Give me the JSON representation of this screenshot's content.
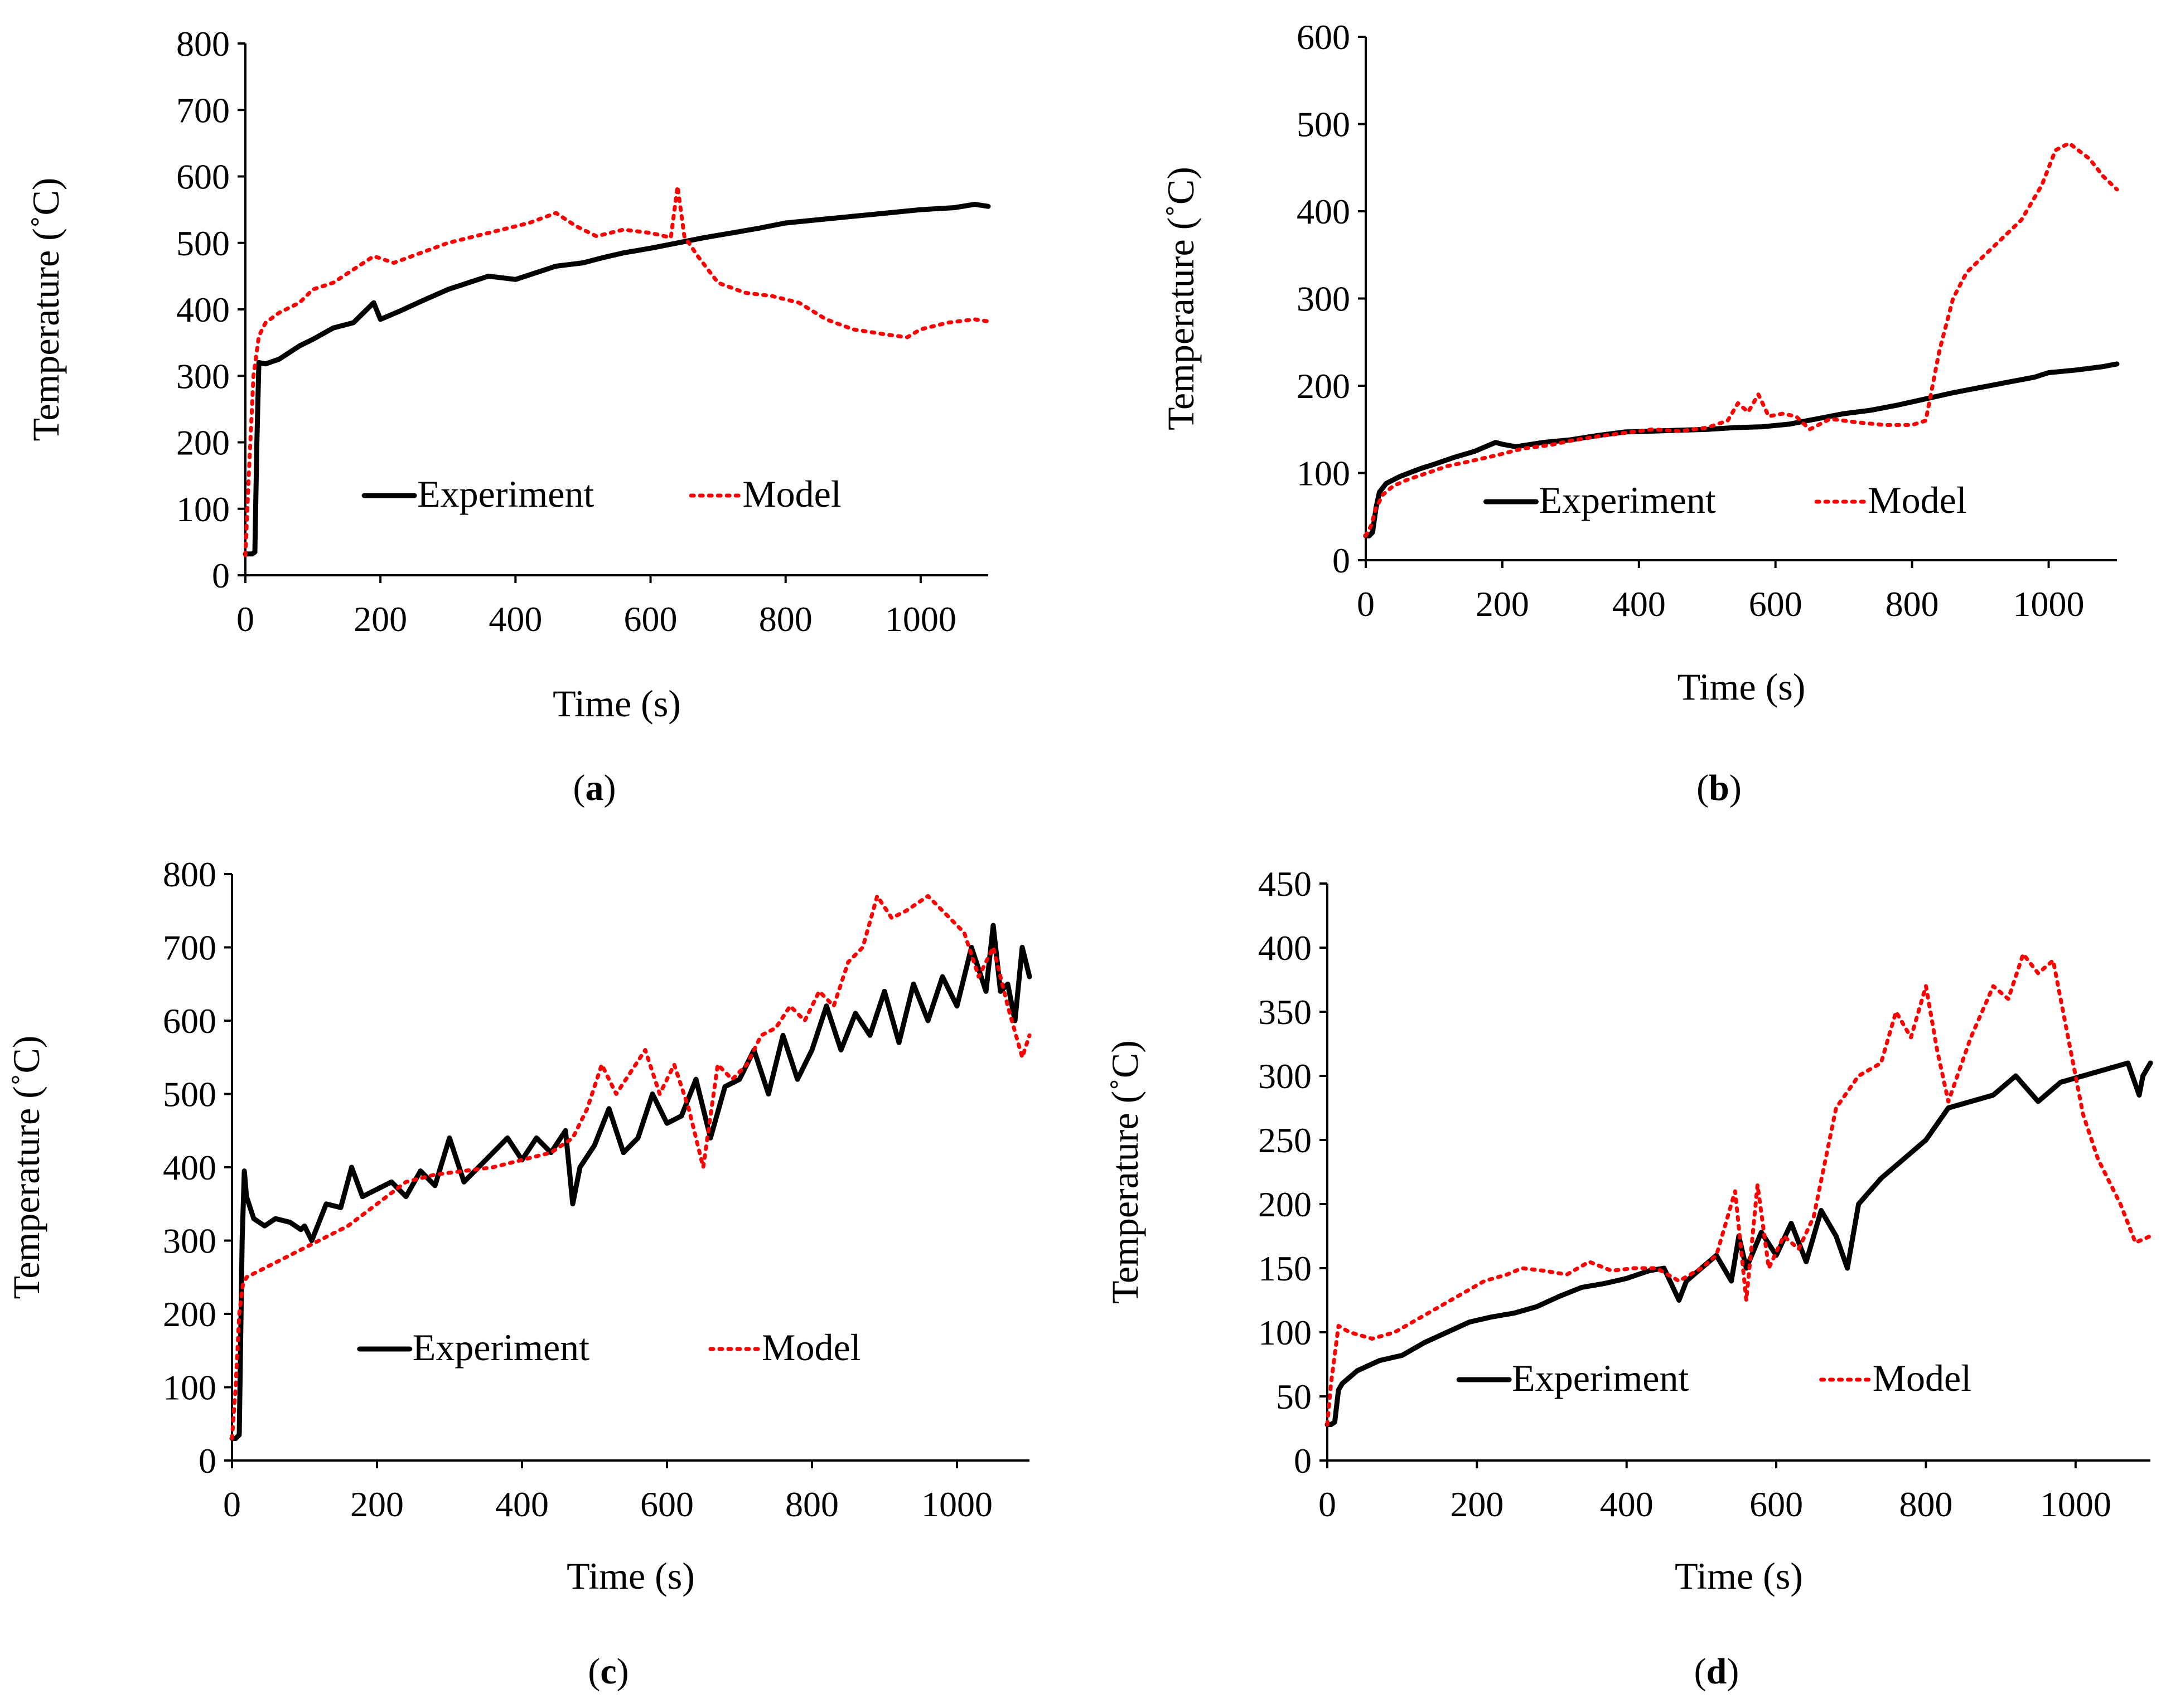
{
  "figure": {
    "colors": {
      "experiment": "#000000",
      "model": "#ff0000"
    }
  },
  "chart_data": [
    {
      "id": "a",
      "type": "line",
      "panel_label": "a",
      "xlabel": "Time (s)",
      "ylabel": "Temperature (˚C)",
      "xlim": [
        0,
        1100
      ],
      "ylim": [
        0,
        800
      ],
      "xticks": [
        0,
        200,
        400,
        600,
        800,
        1000
      ],
      "yticks": [
        0,
        100,
        200,
        300,
        400,
        500,
        600,
        700,
        800
      ],
      "legend": {
        "placement": "bottom-center",
        "entries": [
          "Experiment",
          "Model"
        ]
      },
      "series": [
        {
          "name": "Experiment",
          "x": [
            0,
            5,
            10,
            14,
            17,
            20,
            30,
            50,
            80,
            100,
            130,
            160,
            190,
            200,
            230,
            260,
            300,
            330,
            360,
            400,
            430,
            460,
            500,
            530,
            560,
            600,
            640,
            680,
            720,
            760,
            800,
            850,
            900,
            950,
            1000,
            1050,
            1080,
            1100
          ],
          "y": [
            32,
            32,
            32,
            35,
            200,
            320,
            318,
            325,
            345,
            355,
            372,
            380,
            410,
            385,
            398,
            412,
            430,
            440,
            450,
            445,
            455,
            465,
            470,
            478,
            485,
            492,
            500,
            508,
            515,
            522,
            530,
            535,
            540,
            545,
            550,
            553,
            558,
            555
          ]
        },
        {
          "name": "Model",
          "x": [
            0,
            5,
            12,
            20,
            30,
            50,
            80,
            100,
            130,
            160,
            190,
            220,
            260,
            300,
            340,
            380,
            420,
            460,
            490,
            520,
            560,
            600,
            630,
            640,
            650,
            670,
            700,
            740,
            780,
            820,
            860,
            900,
            950,
            980,
            1000,
            1040,
            1080,
            1100
          ],
          "y": [
            30,
            150,
            300,
            360,
            380,
            395,
            410,
            430,
            440,
            460,
            480,
            470,
            485,
            500,
            510,
            520,
            530,
            545,
            525,
            510,
            520,
            515,
            508,
            585,
            510,
            480,
            440,
            425,
            420,
            410,
            385,
            370,
            362,
            358,
            370,
            380,
            385,
            382
          ]
        }
      ]
    },
    {
      "id": "b",
      "type": "line",
      "panel_label": "b",
      "xlabel": "Time (s)",
      "ylabel": "Temperature (˚C)",
      "xlim": [
        0,
        1100
      ],
      "ylim": [
        0,
        600
      ],
      "xticks": [
        0,
        200,
        400,
        600,
        800,
        1000
      ],
      "yticks": [
        0,
        100,
        200,
        300,
        400,
        500,
        600
      ],
      "legend": {
        "placement": "bottom-center",
        "entries": [
          "Experiment",
          "Model"
        ]
      },
      "series": [
        {
          "name": "Experiment",
          "x": [
            0,
            5,
            10,
            15,
            20,
            30,
            50,
            80,
            100,
            130,
            160,
            190,
            200,
            220,
            260,
            300,
            340,
            380,
            420,
            460,
            500,
            540,
            580,
            620,
            660,
            700,
            740,
            780,
            820,
            860,
            900,
            940,
            980,
            1000,
            1040,
            1080,
            1100
          ],
          "y": [
            28,
            28,
            32,
            60,
            78,
            88,
            96,
            105,
            110,
            118,
            125,
            135,
            133,
            130,
            135,
            138,
            143,
            147,
            148,
            149,
            150,
            152,
            153,
            156,
            162,
            168,
            172,
            178,
            185,
            192,
            198,
            204,
            210,
            215,
            218,
            222,
            225
          ]
        },
        {
          "name": "Model",
          "x": [
            0,
            8,
            15,
            25,
            40,
            60,
            90,
            120,
            150,
            190,
            230,
            270,
            300,
            340,
            380,
            420,
            460,
            500,
            530,
            545,
            560,
            575,
            590,
            610,
            630,
            650,
            680,
            720,
            760,
            800,
            820,
            840,
            860,
            880,
            920,
            960,
            990,
            1010,
            1030,
            1060,
            1080,
            1100
          ],
          "y": [
            28,
            40,
            60,
            75,
            85,
            92,
            100,
            108,
            113,
            120,
            128,
            132,
            137,
            142,
            146,
            150,
            148,
            152,
            160,
            180,
            170,
            190,
            165,
            168,
            165,
            150,
            162,
            158,
            155,
            155,
            160,
            240,
            300,
            330,
            360,
            390,
            430,
            470,
            478,
            460,
            440,
            425
          ]
        }
      ]
    },
    {
      "id": "c",
      "type": "line",
      "panel_label": "c",
      "xlabel": "Time (s)",
      "ylabel": "Temperature (˚C)",
      "xlim": [
        0,
        1100
      ],
      "ylim": [
        0,
        800
      ],
      "xticks": [
        0,
        200,
        400,
        600,
        800,
        1000
      ],
      "yticks": [
        0,
        100,
        200,
        300,
        400,
        500,
        600,
        700,
        800
      ],
      "legend": {
        "placement": "bottom-center",
        "entries": [
          "Experiment",
          "Model"
        ]
      },
      "series": [
        {
          "name": "Experiment",
          "x": [
            0,
            5,
            10,
            14,
            17,
            20,
            30,
            45,
            60,
            80,
            95,
            100,
            110,
            130,
            150,
            165,
            180,
            200,
            220,
            240,
            260,
            280,
            300,
            320,
            340,
            360,
            380,
            400,
            420,
            440,
            460,
            470,
            480,
            500,
            520,
            540,
            560,
            580,
            600,
            620,
            640,
            660,
            680,
            700,
            720,
            740,
            760,
            780,
            800,
            820,
            840,
            860,
            880,
            900,
            920,
            940,
            960,
            980,
            1000,
            1020,
            1040,
            1050,
            1060,
            1070,
            1080,
            1090,
            1100
          ],
          "y": [
            30,
            30,
            35,
            300,
            395,
            360,
            330,
            320,
            330,
            325,
            315,
            320,
            300,
            350,
            345,
            400,
            360,
            370,
            380,
            360,
            395,
            375,
            440,
            380,
            400,
            420,
            440,
            410,
            440,
            420,
            450,
            350,
            400,
            430,
            480,
            420,
            440,
            500,
            460,
            470,
            520,
            440,
            510,
            520,
            560,
            500,
            580,
            520,
            560,
            620,
            560,
            610,
            580,
            640,
            570,
            650,
            600,
            660,
            620,
            700,
            640,
            730,
            640,
            650,
            600,
            700,
            660
          ]
        },
        {
          "name": "Model",
          "x": [
            0,
            5,
            10,
            15,
            20,
            40,
            80,
            120,
            160,
            200,
            240,
            280,
            320,
            360,
            400,
            440,
            470,
            490,
            510,
            530,
            550,
            570,
            590,
            610,
            630,
            650,
            670,
            690,
            710,
            730,
            750,
            770,
            790,
            810,
            830,
            850,
            870,
            890,
            910,
            930,
            960,
            990,
            1010,
            1030,
            1050,
            1070,
            1090,
            1100
          ],
          "y": [
            30,
            100,
            200,
            240,
            250,
            260,
            280,
            300,
            320,
            350,
            380,
            390,
            395,
            400,
            410,
            420,
            440,
            480,
            540,
            500,
            530,
            560,
            500,
            540,
            480,
            400,
            540,
            520,
            540,
            580,
            590,
            620,
            600,
            640,
            620,
            680,
            700,
            770,
            740,
            750,
            770,
            740,
            720,
            660,
            700,
            620,
            550,
            580
          ]
        }
      ]
    },
    {
      "id": "d",
      "type": "line",
      "panel_label": "d",
      "xlabel": "Time (s)",
      "ylabel": "Temperature (˚C)",
      "xlim": [
        0,
        1100
      ],
      "ylim": [
        0,
        450
      ],
      "xticks": [
        0,
        200,
        400,
        600,
        800,
        1000
      ],
      "yticks": [
        0,
        50,
        100,
        150,
        200,
        250,
        300,
        350,
        400,
        450
      ],
      "legend": {
        "placement": "bottom-center",
        "entries": [
          "Experiment",
          "Model"
        ]
      },
      "series": [
        {
          "name": "Experiment",
          "x": [
            0,
            5,
            10,
            15,
            20,
            40,
            70,
            100,
            130,
            160,
            190,
            220,
            250,
            280,
            310,
            340,
            370,
            400,
            430,
            450,
            470,
            480,
            500,
            520,
            540,
            550,
            560,
            580,
            600,
            620,
            640,
            660,
            680,
            695,
            710,
            740,
            770,
            800,
            830,
            860,
            890,
            920,
            950,
            980,
            1010,
            1040,
            1070,
            1085,
            1090,
            1100
          ],
          "y": [
            28,
            28,
            30,
            55,
            60,
            70,
            78,
            82,
            92,
            100,
            108,
            112,
            115,
            120,
            128,
            135,
            138,
            142,
            148,
            150,
            125,
            140,
            150,
            160,
            140,
            175,
            150,
            178,
            160,
            185,
            155,
            195,
            175,
            150,
            200,
            220,
            235,
            250,
            275,
            280,
            285,
            300,
            280,
            295,
            300,
            305,
            310,
            285,
            300,
            310
          ]
        },
        {
          "name": "Model",
          "x": [
            0,
            5,
            15,
            30,
            60,
            90,
            120,
            150,
            180,
            210,
            240,
            260,
            290,
            320,
            350,
            380,
            410,
            440,
            470,
            500,
            520,
            545,
            560,
            575,
            590,
            610,
            630,
            650,
            680,
            710,
            740,
            760,
            780,
            800,
            815,
            830,
            860,
            890,
            910,
            930,
            950,
            970,
            990,
            1010,
            1030,
            1060,
            1080,
            1100
          ],
          "y": [
            28,
            60,
            105,
            100,
            95,
            100,
            110,
            120,
            130,
            140,
            145,
            150,
            148,
            145,
            155,
            148,
            150,
            150,
            140,
            150,
            160,
            210,
            125,
            215,
            150,
            175,
            165,
            190,
            275,
            300,
            310,
            350,
            330,
            370,
            320,
            280,
            330,
            370,
            360,
            395,
            380,
            390,
            330,
            270,
            235,
            200,
            170,
            175
          ]
        }
      ]
    }
  ]
}
